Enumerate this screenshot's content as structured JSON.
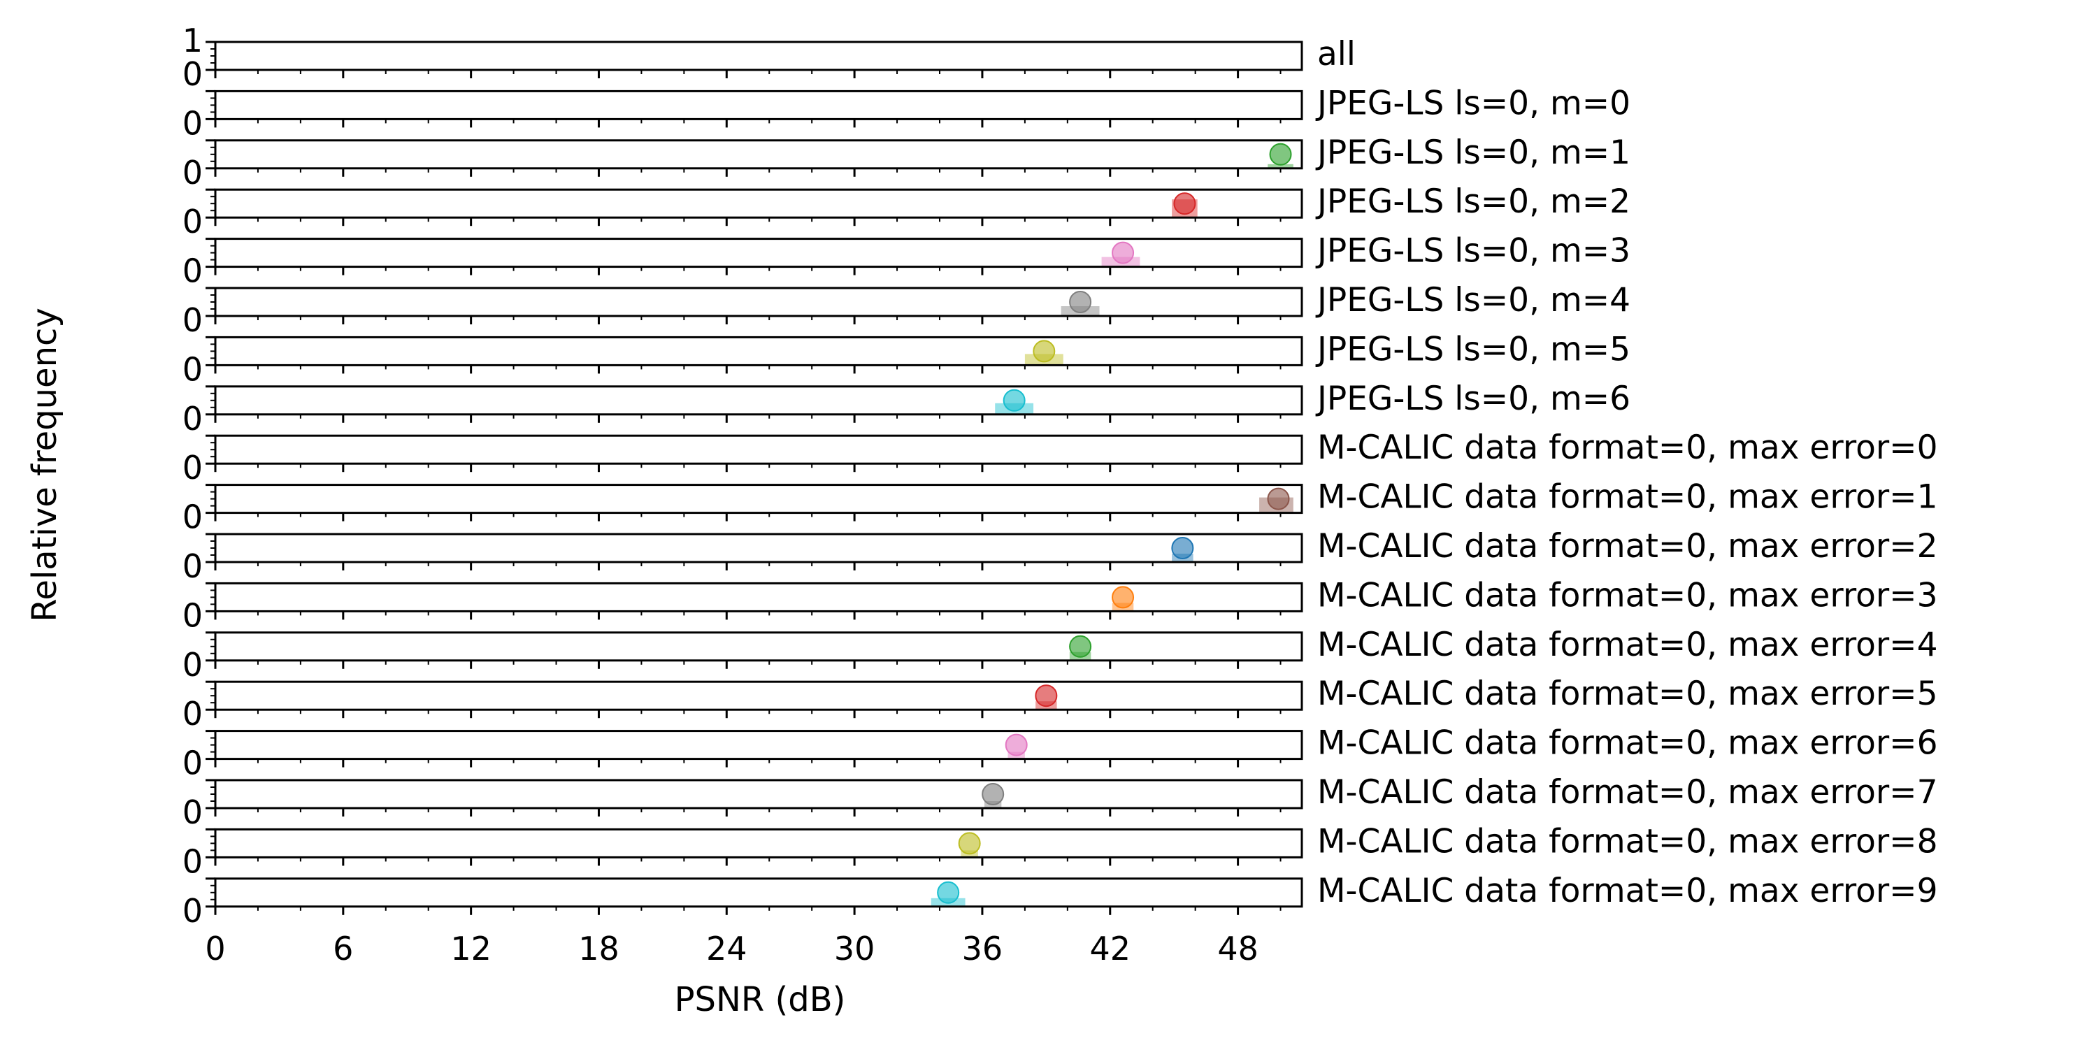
{
  "chart_data": {
    "type": "histogram",
    "xlabel": "PSNR (dB)",
    "ylabel": "Relative frequency",
    "xlim": [
      0,
      51
    ],
    "ylim": [
      0,
      1
    ],
    "x_ticks": [
      0,
      6,
      12,
      18,
      24,
      30,
      36,
      42,
      48
    ],
    "y_tick_labels": [
      "0",
      "1"
    ],
    "grid": false,
    "panels": [
      {
        "label": "all",
        "color": "#17becf",
        "mean": null,
        "bins": [
          [
            36.8,
            38.2,
            0.03
          ],
          [
            40.0,
            41.0,
            0.03
          ],
          [
            42.0,
            43.5,
            0.03
          ],
          [
            44.5,
            45.8,
            0.03
          ],
          [
            49.2,
            50.6,
            0.03
          ]
        ]
      },
      {
        "label": "JPEG-LS ls=0, m=0",
        "color": "#1f77b4",
        "mean": null,
        "bins": []
      },
      {
        "label": "JPEG-LS ls=0, m=1",
        "color": "#2ca02c",
        "mean": 50.0,
        "bins": [
          [
            49.4,
            50.6,
            0.15
          ]
        ]
      },
      {
        "label": "JPEG-LS ls=0, m=2",
        "color": "#d62728",
        "mean": 45.5,
        "bins": [
          [
            44.9,
            46.1,
            0.65
          ]
        ]
      },
      {
        "label": "JPEG-LS ls=0, m=3",
        "color": "#e377c2",
        "mean": 42.6,
        "bins": [
          [
            41.6,
            43.4,
            0.35
          ]
        ]
      },
      {
        "label": "JPEG-LS ls=0, m=4",
        "color": "#7f7f7f",
        "mean": 40.6,
        "bins": [
          [
            39.7,
            41.5,
            0.35
          ]
        ]
      },
      {
        "label": "JPEG-LS ls=0, m=5",
        "color": "#bcbd22",
        "mean": 38.9,
        "bins": [
          [
            38.0,
            39.8,
            0.4
          ]
        ]
      },
      {
        "label": "JPEG-LS ls=0, m=6",
        "color": "#17becf",
        "mean": 37.5,
        "bins": [
          [
            36.6,
            38.4,
            0.4
          ]
        ]
      },
      {
        "label": "M-CALIC data format=0, max error=0",
        "color": "#9467bd",
        "mean": null,
        "bins": []
      },
      {
        "label": "M-CALIC data format=0, max error=1",
        "color": "#8c564b",
        "mean": 49.9,
        "bins": [
          [
            49.0,
            50.6,
            0.55
          ]
        ]
      },
      {
        "label": "M-CALIC data format=0, max error=2",
        "color": "#1f77b4",
        "mean": 45.4,
        "bins": [
          [
            44.9,
            45.9,
            0.3
          ]
        ]
      },
      {
        "label": "M-CALIC data format=0, max error=3",
        "color": "#ff7f0e",
        "mean": 42.6,
        "bins": [
          [
            42.1,
            43.1,
            0.3
          ]
        ]
      },
      {
        "label": "M-CALIC data format=0, max error=4",
        "color": "#2ca02c",
        "mean": 40.6,
        "bins": [
          [
            40.1,
            41.1,
            0.3
          ]
        ]
      },
      {
        "label": "M-CALIC data format=0, max error=5",
        "color": "#d62728",
        "mean": 39.0,
        "bins": [
          [
            38.5,
            39.5,
            0.3
          ]
        ]
      },
      {
        "label": "M-CALIC data format=0, max error=6",
        "color": "#e377c2",
        "mean": 37.6,
        "bins": [
          [
            37.2,
            38.0,
            0.25
          ]
        ]
      },
      {
        "label": "M-CALIC data format=0, max error=7",
        "color": "#7f7f7f",
        "mean": 36.5,
        "bins": [
          [
            36.1,
            36.9,
            0.25
          ]
        ]
      },
      {
        "label": "M-CALIC data format=0, max error=8",
        "color": "#bcbd22",
        "mean": 35.4,
        "bins": [
          [
            35.0,
            35.8,
            0.25
          ]
        ]
      },
      {
        "label": "M-CALIC data format=0, max error=9",
        "color": "#17becf",
        "mean": 34.4,
        "bins": [
          [
            33.6,
            35.2,
            0.3
          ]
        ]
      }
    ]
  }
}
